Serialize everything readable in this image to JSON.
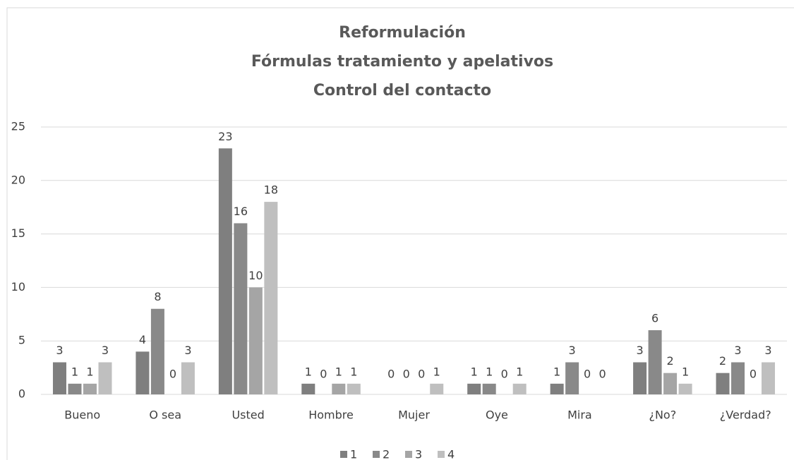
{
  "chart_data": {
    "type": "bar",
    "title": [
      "Reformulación",
      "Fórmulas tratamiento y apelativos",
      "Control del contacto"
    ],
    "categories": [
      "Bueno",
      "O sea",
      "Usted",
      "Hombre",
      "Mujer",
      "Oye",
      "Mira",
      "¿No?",
      "¿Verdad?"
    ],
    "series": [
      {
        "name": "1",
        "color": "#7f7f7f",
        "values": [
          3,
          4,
          23,
          1,
          0,
          1,
          1,
          3,
          2
        ]
      },
      {
        "name": "2",
        "color": "#898989",
        "values": [
          1,
          8,
          16,
          0,
          0,
          1,
          3,
          6,
          3
        ]
      },
      {
        "name": "3",
        "color": "#a5a5a5",
        "values": [
          1,
          0,
          10,
          1,
          0,
          0,
          0,
          2,
          0
        ]
      },
      {
        "name": "4",
        "color": "#bfbfbf",
        "values": [
          3,
          3,
          18,
          1,
          1,
          1,
          0,
          1,
          3
        ]
      }
    ],
    "ylim": [
      0,
      25
    ],
    "yticks": [
      0,
      5,
      10,
      15,
      20,
      25
    ],
    "grid": true,
    "legend": "bottom"
  }
}
